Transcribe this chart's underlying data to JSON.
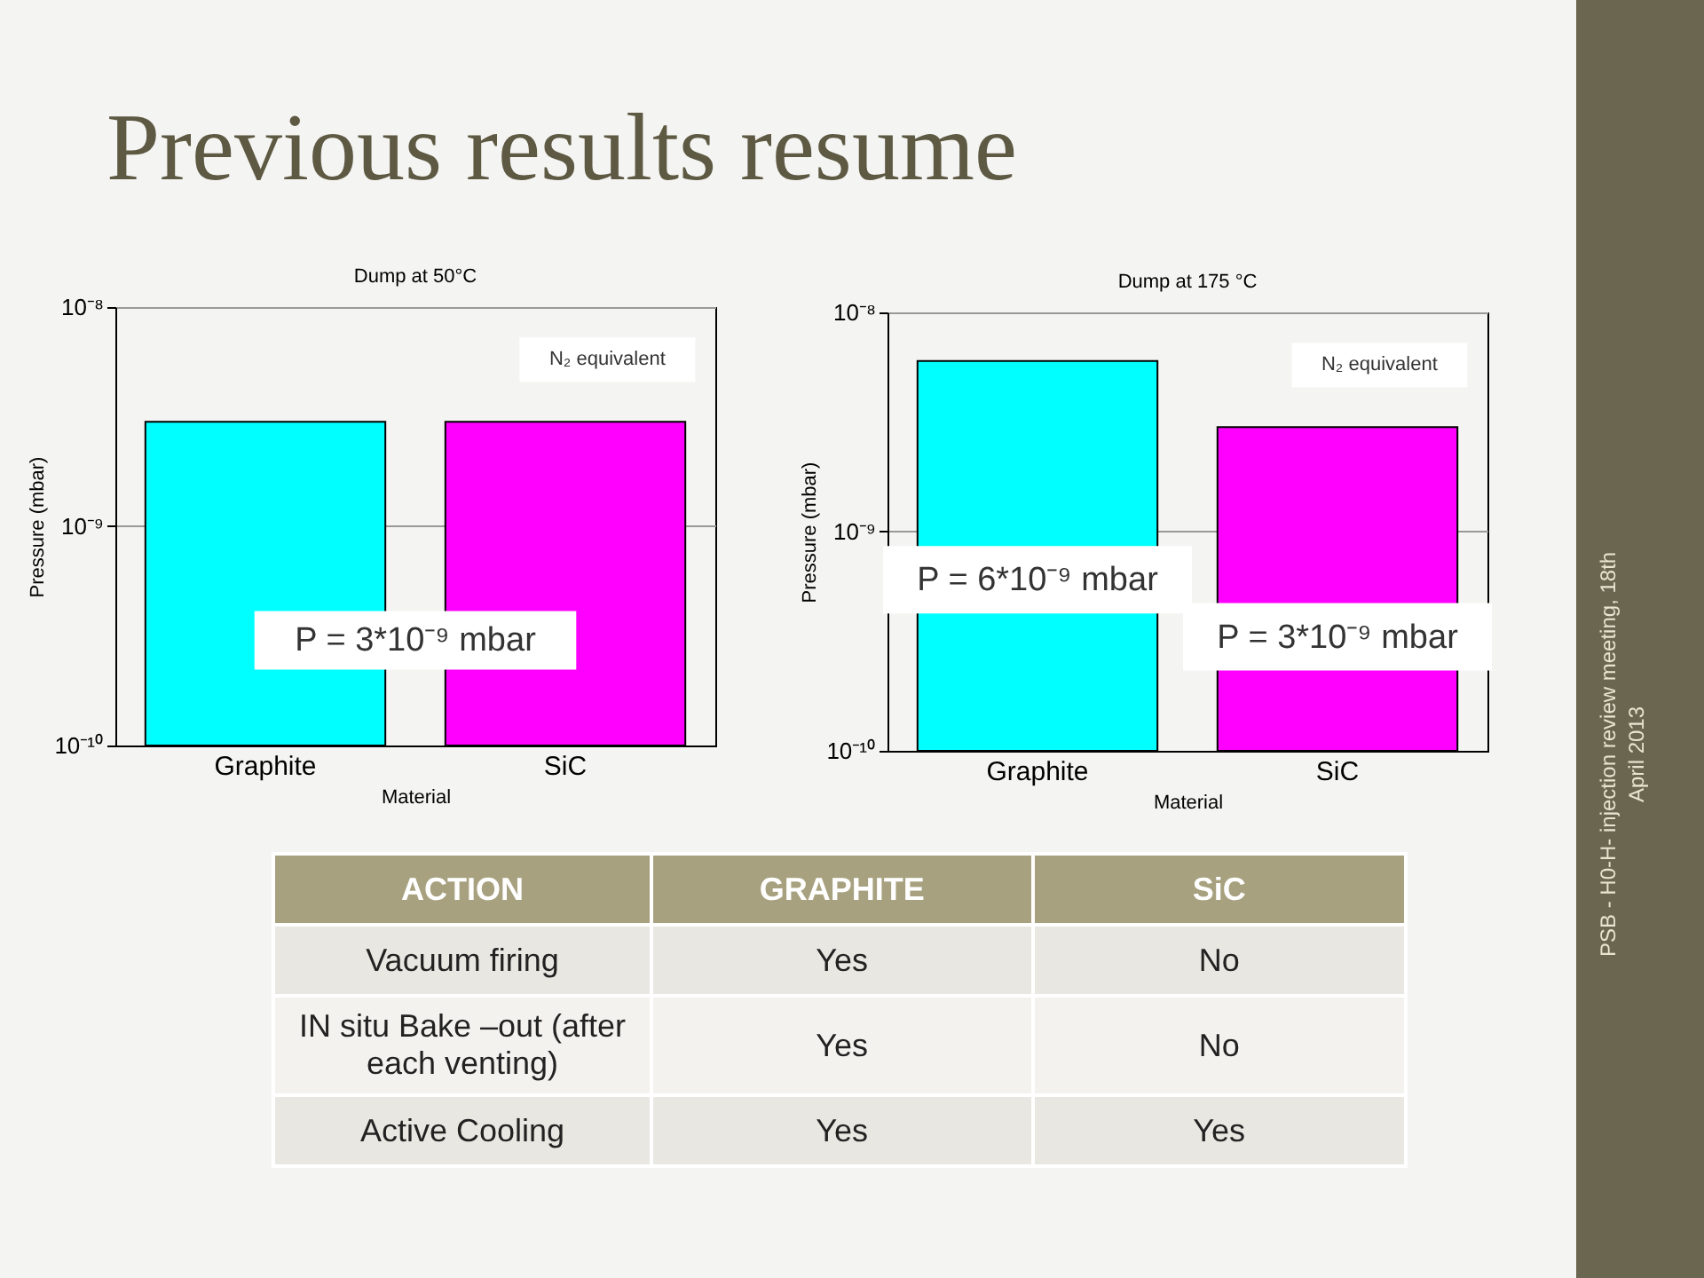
{
  "chart_data": [
    {
      "type": "other",
      "title": "Previous results resume",
      "annotations": [
        "PSB - H0-H- injection review meeting, 18th April 2013"
      ]
    },
    {
      "type": "bar",
      "title": "Dump at 50°C",
      "xlabel": "Material",
      "ylabel": "Pressure (mbar)",
      "categories": [
        "Graphite",
        "SiC"
      ],
      "values": [
        3e-09,
        3e-09
      ],
      "colors": [
        "#00ffff",
        "#ff00ff"
      ],
      "log": true,
      "ylim": [
        1e-10,
        1e-08
      ],
      "yticks": [
        {
          "value": 1e-10,
          "label": "10⁻¹⁰"
        },
        {
          "value": 1e-09,
          "label": "10⁻⁹"
        },
        {
          "value": 1e-08,
          "label": "10⁻⁸"
        }
      ],
      "grid": "y",
      "annotations": [
        "N₂ equivalent",
        "P = 3*10⁻⁹ mbar"
      ]
    },
    {
      "type": "bar",
      "title": "Dump at 175 °C",
      "xlabel": "Material",
      "ylabel": "Pressure (mbar)",
      "categories": [
        "Graphite",
        "SiC"
      ],
      "values": [
        6e-09,
        3e-09
      ],
      "colors": [
        "#00ffff",
        "#ff00ff"
      ],
      "log": true,
      "ylim": [
        1e-10,
        1e-08
      ],
      "yticks": [
        {
          "value": 1e-10,
          "label": "10⁻¹⁰"
        },
        {
          "value": 1e-09,
          "label": "10⁻⁹"
        },
        {
          "value": 1e-08,
          "label": "10⁻⁸"
        }
      ],
      "grid": "y",
      "annotations": [
        "N₂ equivalent"
      ],
      "value_labels": [
        "P = 6*10⁻⁹ mbar",
        "P = 3*10⁻⁹ mbar"
      ]
    },
    {
      "type": "other",
      "categories": [
        "ACTION",
        "GRAPHITE",
        "SiC"
      ],
      "y_categories": [
        "Vacuum firing",
        "IN situ Bake –out (after each venting)",
        "Active Cooling"
      ],
      "cell_labels": [
        [
          "Yes",
          "No"
        ],
        [
          "Yes",
          "No"
        ],
        [
          "Yes",
          "Yes"
        ]
      ]
    }
  ]
}
